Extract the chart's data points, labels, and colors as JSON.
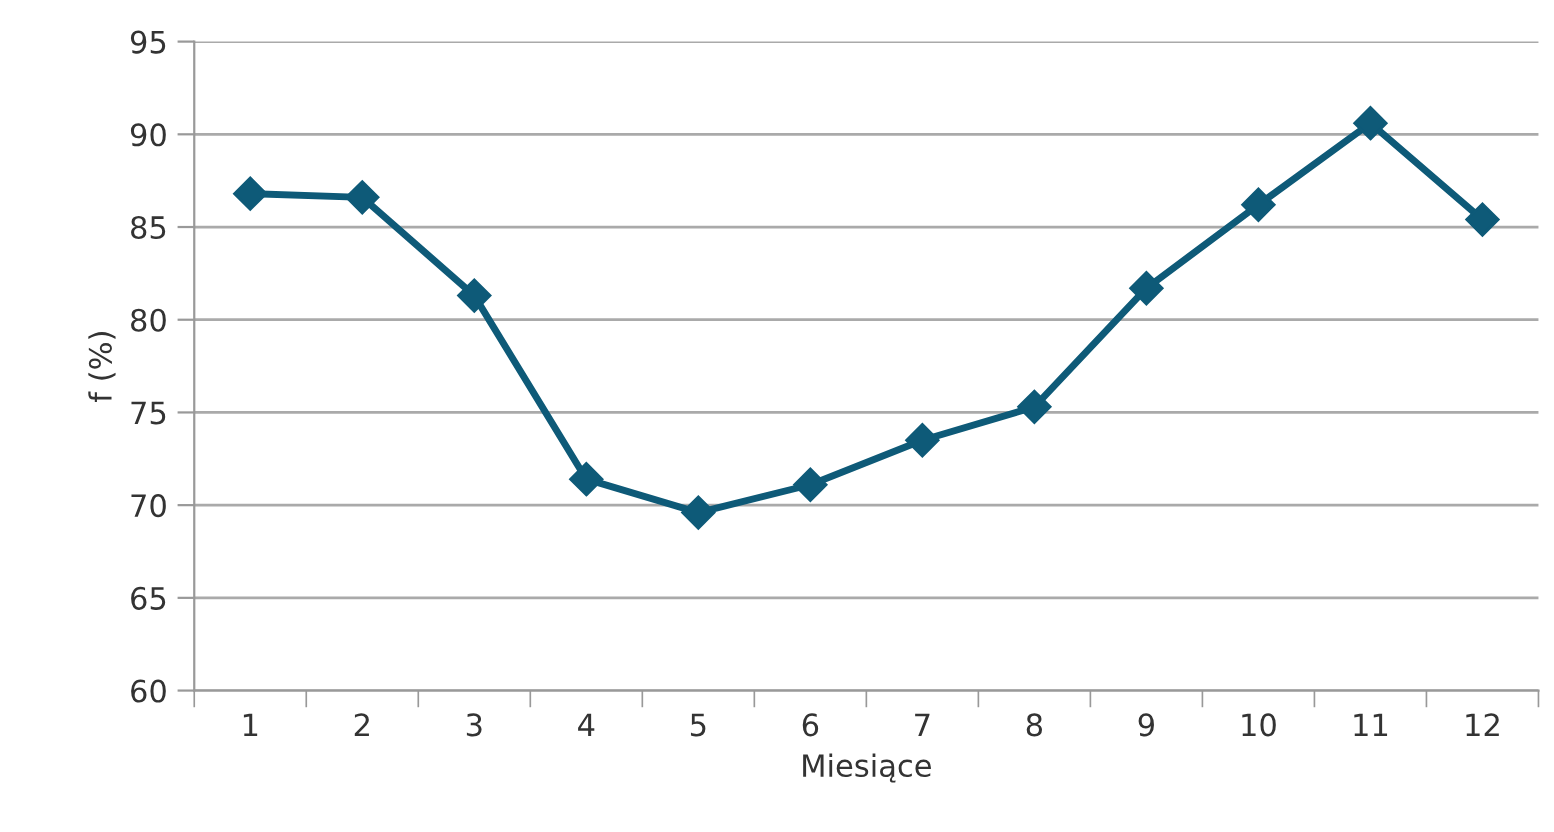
{
  "chart_data": {
    "type": "line",
    "xlabel": "Miesiące",
    "ylabel": "f (%)",
    "categories": [
      "1",
      "2",
      "3",
      "4",
      "5",
      "6",
      "7",
      "8",
      "9",
      "10",
      "11",
      "12"
    ],
    "series": [
      {
        "color": "#0e5a78",
        "values": [
          86.8,
          86.6,
          81.3,
          71.4,
          69.6,
          71.1,
          73.5,
          75.3,
          81.7,
          86.2,
          90.6,
          85.4
        ]
      }
    ],
    "ylim": [
      60,
      95
    ],
    "yticks": [
      60,
      65,
      70,
      75,
      80,
      85,
      90,
      95
    ],
    "grid": "y",
    "marker": "diamond",
    "line_style": "solid"
  }
}
